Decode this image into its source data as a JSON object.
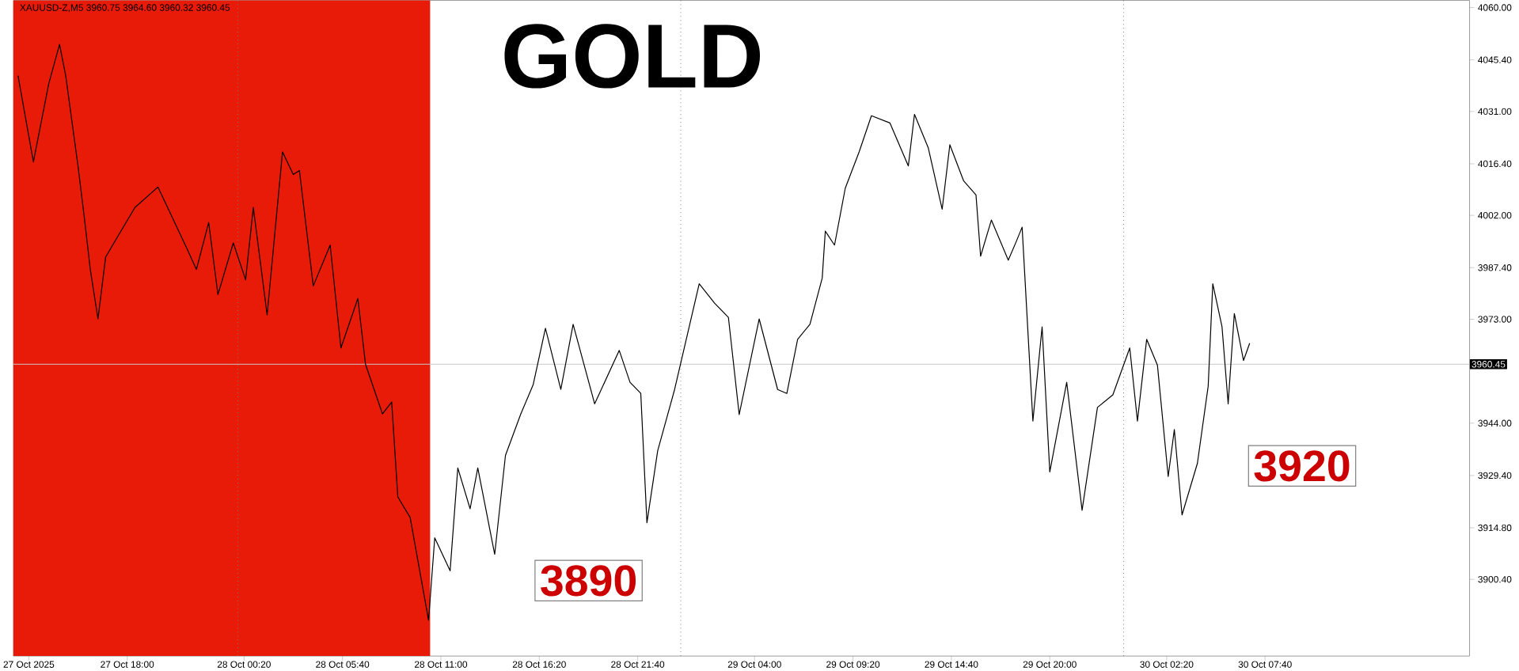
{
  "chart_data": {
    "type": "line",
    "title": "GOLD",
    "subtitle": "XAUUSD-Z,M5  3960.75 3964.60 3960.32 3960.45",
    "x": [
      "2025-10-27T12:05",
      "2025-10-27T12:55",
      "2025-10-27T13:45",
      "2025-10-27T14:20",
      "2025-10-27T14:40",
      "2025-10-27T15:20",
      "2025-10-27T15:40",
      "2025-10-27T16:00",
      "2025-10-27T16:25",
      "2025-10-27T16:50",
      "2025-10-27T18:25",
      "2025-10-27T19:40",
      "2025-10-27T21:15",
      "2025-10-27T21:45",
      "2025-10-27T22:25",
      "2025-10-27T22:55",
      "2025-10-27T23:45",
      "2025-10-28T00:25",
      "2025-10-28T00:50",
      "2025-10-28T01:35",
      "2025-10-28T02:25",
      "2025-10-28T03:00",
      "2025-10-28T03:20",
      "2025-10-28T04:05",
      "2025-10-28T05:00",
      "2025-10-28T05:35",
      "2025-10-28T06:30",
      "2025-10-28T06:55",
      "2025-10-28T07:50",
      "2025-10-28T08:20",
      "2025-10-28T08:40",
      "2025-10-28T09:20",
      "2025-10-28T10:20",
      "2025-10-28T10:40",
      "2025-10-28T11:30",
      "2025-10-28T11:55",
      "2025-10-28T12:35",
      "2025-10-28T13:00",
      "2025-10-28T13:55",
      "2025-10-28T14:30",
      "2025-10-28T15:20",
      "2025-10-28T16:00",
      "2025-10-28T16:40",
      "2025-10-28T17:30",
      "2025-10-28T18:10",
      "2025-10-28T19:20",
      "2025-10-28T20:40",
      "2025-10-28T21:15",
      "2025-10-28T21:50",
      "2025-10-28T22:10",
      "2025-10-28T22:45",
      "2025-10-28T23:40",
      "2025-10-29T01:00",
      "2025-10-29T01:50",
      "2025-10-29T02:35",
      "2025-10-29T03:10",
      "2025-10-29T04:15",
      "2025-10-29T05:15",
      "2025-10-29T05:45",
      "2025-10-29T06:20",
      "2025-10-29T07:00",
      "2025-10-29T07:40",
      "2025-10-29T07:50",
      "2025-10-29T08:20",
      "2025-10-29T08:55",
      "2025-10-29T09:40",
      "2025-10-29T10:20",
      "2025-10-29T11:20",
      "2025-10-29T12:20",
      "2025-10-29T12:40",
      "2025-10-29T13:25",
      "2025-10-29T14:10",
      "2025-10-29T14:35",
      "2025-10-29T15:20",
      "2025-10-29T16:00",
      "2025-10-29T16:15",
      "2025-10-29T16:50",
      "2025-10-29T17:45",
      "2025-10-29T18:10",
      "2025-10-29T18:30",
      "2025-10-29T19:05",
      "2025-10-29T19:35",
      "2025-10-29T20:00",
      "2025-10-29T20:55",
      "2025-10-29T21:45",
      "2025-10-29T22:35",
      "2025-10-29T23:25",
      "2025-10-30T00:20",
      "2025-10-30T00:45",
      "2025-10-30T01:15",
      "2025-10-30T01:50",
      "2025-10-30T02:25",
      "2025-10-30T02:45",
      "2025-10-30T03:10",
      "2025-10-30T04:00",
      "2025-10-30T04:35",
      "2025-10-30T04:50",
      "2025-10-30T05:20",
      "2025-10-30T05:40",
      "2025-10-30T06:00",
      "2025-10-30T06:30",
      "2025-10-30T06:50"
    ],
    "series": [
      {
        "color": "#000000",
        "values": [
          4041.0,
          4016.9,
          4038.8,
          4049.7,
          4041.0,
          4015.8,
          4001.8,
          3986.9,
          3973.1,
          3990.4,
          4004.2,
          4009.9,
          3992.6,
          3986.9,
          4000.0,
          3979.9,
          3994.3,
          3984.0,
          4004.2,
          3974.2,
          4019.7,
          4013.4,
          4014.5,
          3982.3,
          3993.7,
          3965.0,
          3978.8,
          3960.4,
          3946.6,
          3949.9,
          3923.4,
          3917.7,
          3889.0,
          3912.0,
          3902.8,
          3931.5,
          3920.1,
          3931.5,
          3907.4,
          3935.0,
          3946.6,
          3954.7,
          3970.5,
          3953.4,
          3971.6,
          3949.4,
          3964.3,
          3955.4,
          3952.3,
          3916.2,
          3936.3,
          3953.4,
          3982.9,
          3977.5,
          3973.5,
          3946.4,
          3973.1,
          3953.4,
          3952.3,
          3967.4,
          3971.6,
          3984.5,
          3997.6,
          3993.7,
          4009.6,
          4019.7,
          4029.8,
          4027.8,
          4015.8,
          4030.2,
          4020.8,
          4003.7,
          4021.7,
          4011.6,
          4007.7,
          3990.6,
          4000.7,
          3989.5,
          3994.5,
          3998.7,
          3944.6,
          3970.9,
          3930.4,
          3955.4,
          3919.7,
          3948.4,
          3951.9,
          3965.0,
          3944.6,
          3967.4,
          3960.2,
          3929.1,
          3942.2,
          3918.4,
          3932.8,
          3954.3,
          3982.9,
          3970.9,
          3949.4,
          3974.6,
          3961.5,
          3966.3
        ]
      }
    ],
    "xlim": [
      "2025-10-27T11:50",
      "2025-10-30T18:45"
    ],
    "ylim": [
      3879,
      4062
    ],
    "xticks": [
      {
        "value": "2025-10-27T12:40",
        "label": "27 Oct 2025"
      },
      {
        "value": "2025-10-27T18:00",
        "label": "27 Oct 18:00"
      },
      {
        "value": "2025-10-28T00:20",
        "label": "28 Oct 00:20"
      },
      {
        "value": "2025-10-28T05:40",
        "label": "28 Oct 05:40"
      },
      {
        "value": "2025-10-28T11:00",
        "label": "28 Oct 11:00"
      },
      {
        "value": "2025-10-28T16:20",
        "label": "28 Oct 16:20"
      },
      {
        "value": "2025-10-28T21:40",
        "label": "28 Oct 21:40"
      },
      {
        "value": "2025-10-29T04:00",
        "label": "29 Oct 04:00"
      },
      {
        "value": "2025-10-29T09:20",
        "label": "29 Oct 09:20"
      },
      {
        "value": "2025-10-29T14:40",
        "label": "29 Oct 14:40"
      },
      {
        "value": "2025-10-29T20:00",
        "label": "29 Oct 20:00"
      },
      {
        "value": "2025-10-30T02:20",
        "label": "30 Oct 02:20"
      },
      {
        "value": "2025-10-30T07:40",
        "label": "30 Oct 07:40"
      }
    ],
    "yticks": [
      {
        "value": 3900.4,
        "label": "3900.40"
      },
      {
        "value": 3914.8,
        "label": "3914.80"
      },
      {
        "value": 3929.4,
        "label": "3929.40"
      },
      {
        "value": 3944,
        "label": "3944.00"
      },
      {
        "value": 3973,
        "label": "3973.00"
      },
      {
        "value": 3987.4,
        "label": "3987.40"
      },
      {
        "value": 4002,
        "label": "4002.00"
      },
      {
        "value": 4016.4,
        "label": "4016.40"
      },
      {
        "value": 4031,
        "label": "4031.00"
      },
      {
        "value": 4045.4,
        "label": "4045.40"
      },
      {
        "value": 4060,
        "label": "4060.00"
      }
    ],
    "ref_lines": [
      {
        "axis": "y",
        "value": 3960.45,
        "label": "3960.45",
        "color": "#c8c8c8",
        "line_style": "solid"
      },
      {
        "axis": "x",
        "value": "2025-10-28T00:00",
        "color": "#808080",
        "line_style": "dotted"
      },
      {
        "axis": "x",
        "value": "2025-10-29T00:00",
        "color": "#808080",
        "line_style": "dotted"
      },
      {
        "axis": "x",
        "value": "2025-10-30T00:00",
        "color": "#808080",
        "line_style": "dotted"
      }
    ],
    "bands": [
      {
        "axis": "x",
        "from": "2025-10-27T11:50",
        "to": "2025-10-28T10:25",
        "color": "#e81a08"
      }
    ],
    "annotations": [
      "3890",
      "3920"
    ],
    "line_style": "solid",
    "marker": "none",
    "grid": false
  }
}
